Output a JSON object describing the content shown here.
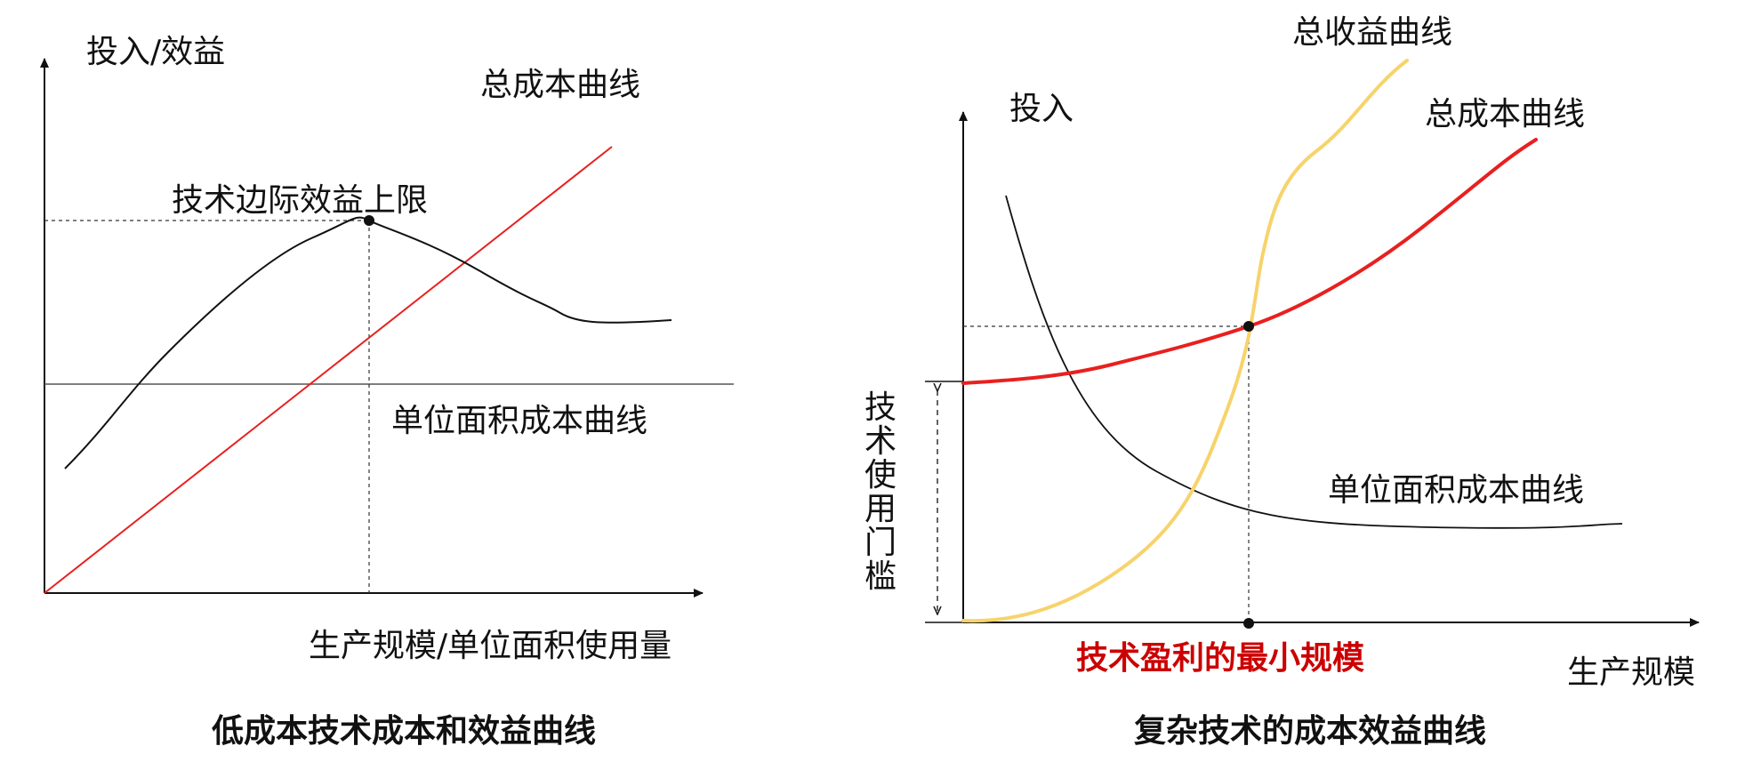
{
  "left_panel": {
    "y_axis_label": "投入/效益",
    "x_axis_label": "生产规模/单位面积使用量",
    "total_cost_label": "总成本曲线",
    "benefit_peak_label": "技术边际效益上限",
    "unit_cost_label": "单位面积成本曲线",
    "caption": "低成本技术成本和效益曲线",
    "colors": {
      "axis": "#111111",
      "benefit_curve": "#111111",
      "total_cost_line": "#e8201f",
      "unit_cost_line": "#555555"
    }
  },
  "right_panel": {
    "y_axis_label": "投入",
    "x_axis_label": "生产规模",
    "total_revenue_label": "总收益曲线",
    "total_cost_label": "总成本曲线",
    "unit_cost_label": "单位面积成本曲线",
    "threshold_label_chars": [
      "技",
      "术",
      "使",
      "用",
      "门",
      "槛"
    ],
    "min_scale_label": "技术盈利的最小规模",
    "caption": "复杂技术的成本效益曲线",
    "colors": {
      "axis": "#111111",
      "total_revenue_curve": "#f7d36b",
      "total_cost_curve": "#e8201f",
      "unit_cost_curve": "#111111",
      "min_scale_label": "#cc0000"
    }
  }
}
